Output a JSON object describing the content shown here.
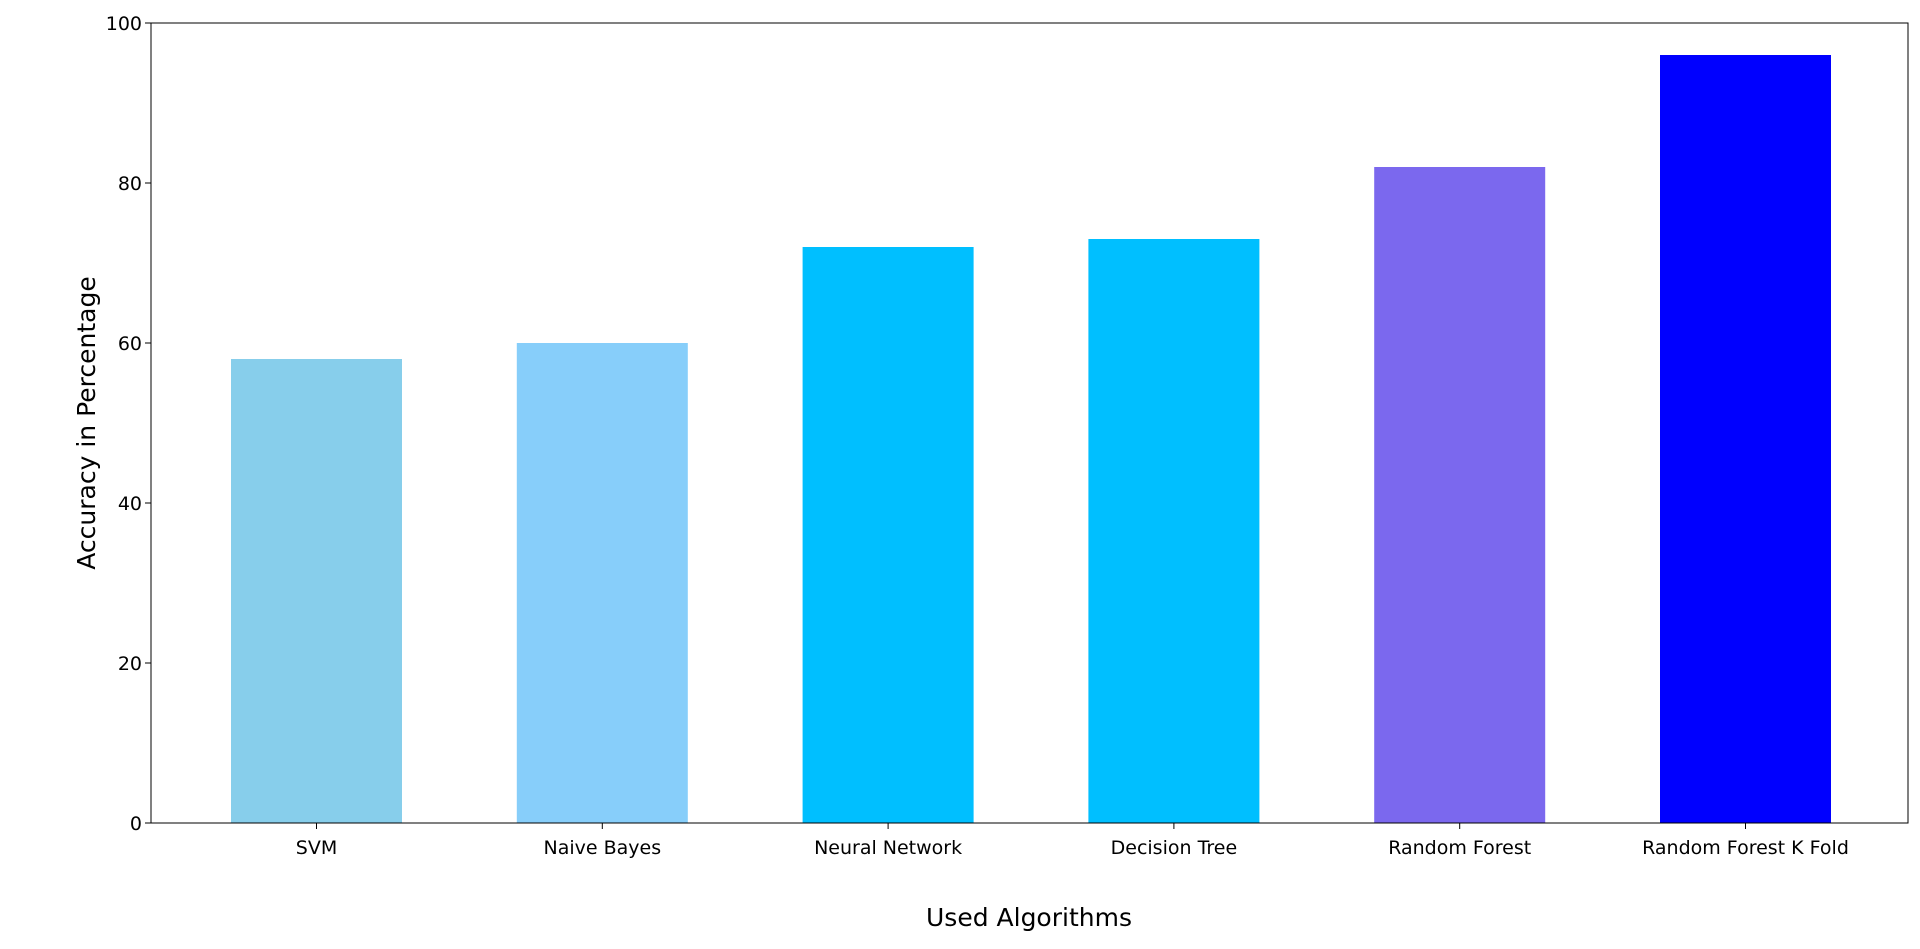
{
  "chart_data": {
    "type": "bar",
    "title": "",
    "xlabel": "Used Algorithms",
    "ylabel": "Accuracy in Percentage",
    "categories": [
      "SVM",
      "Naive Bayes",
      "Neural Network",
      "Decision Tree",
      "Random Forest",
      "Random Forest K Fold"
    ],
    "values": [
      58,
      60,
      72,
      73,
      82,
      96
    ],
    "colors": [
      "#87CEEB",
      "#87CEFA",
      "#00BFFF",
      "#00BFFF",
      "#7B68EE",
      "#0000FF"
    ],
    "ylim": [
      0,
      100
    ],
    "yticks": [
      0,
      20,
      40,
      60,
      80,
      100
    ],
    "grid": false,
    "legend": "none"
  }
}
